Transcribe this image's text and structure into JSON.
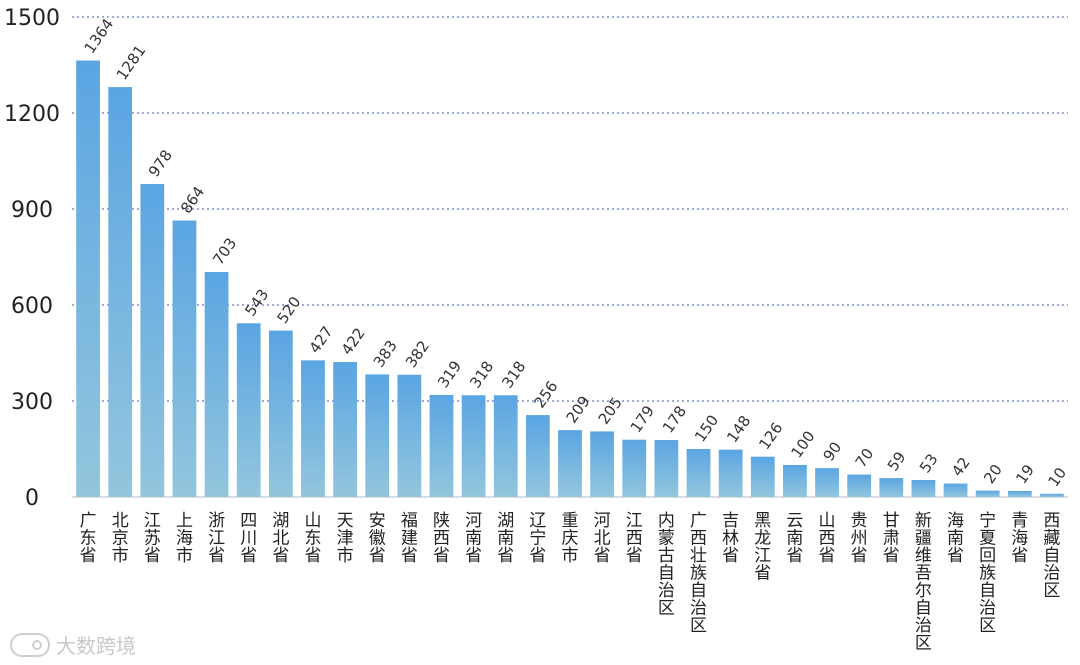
{
  "chart_data": {
    "type": "bar",
    "title": "",
    "xlabel": "",
    "ylabel": "",
    "ylim": [
      0,
      1500
    ],
    "yticks": [
      0,
      300,
      600,
      900,
      1200,
      1500
    ],
    "grid": true,
    "categories": [
      "广东省",
      "北京市",
      "江苏省",
      "上海市",
      "浙江省",
      "四川省",
      "湖北省",
      "山东省",
      "天津市",
      "安徽省",
      "福建省",
      "陕西省",
      "河南省",
      "湖南省",
      "辽宁省",
      "重庆市",
      "河北省",
      "江西省",
      "内蒙古自治区",
      "广西壮族自治区",
      "吉林省",
      "黑龙江省",
      "云南省",
      "山西省",
      "贵州省",
      "甘肃省",
      "新疆维吾尔自治区",
      "海南省",
      "宁夏回族自治区",
      "青海省",
      "西藏自治区"
    ],
    "values": [
      1364,
      1281,
      978,
      864,
      703,
      543,
      520,
      427,
      422,
      383,
      382,
      319,
      318,
      318,
      256,
      209,
      205,
      179,
      178,
      150,
      148,
      126,
      100,
      90,
      70,
      59,
      53,
      42,
      20,
      19,
      10
    ]
  },
  "colors": {
    "bar_top": "#5aa5e2",
    "bar_bottom": "#93c6dd",
    "grid": "#3b54b5"
  },
  "watermark": {
    "text": "大数跨境",
    "icon": "brand-logo-icon"
  }
}
